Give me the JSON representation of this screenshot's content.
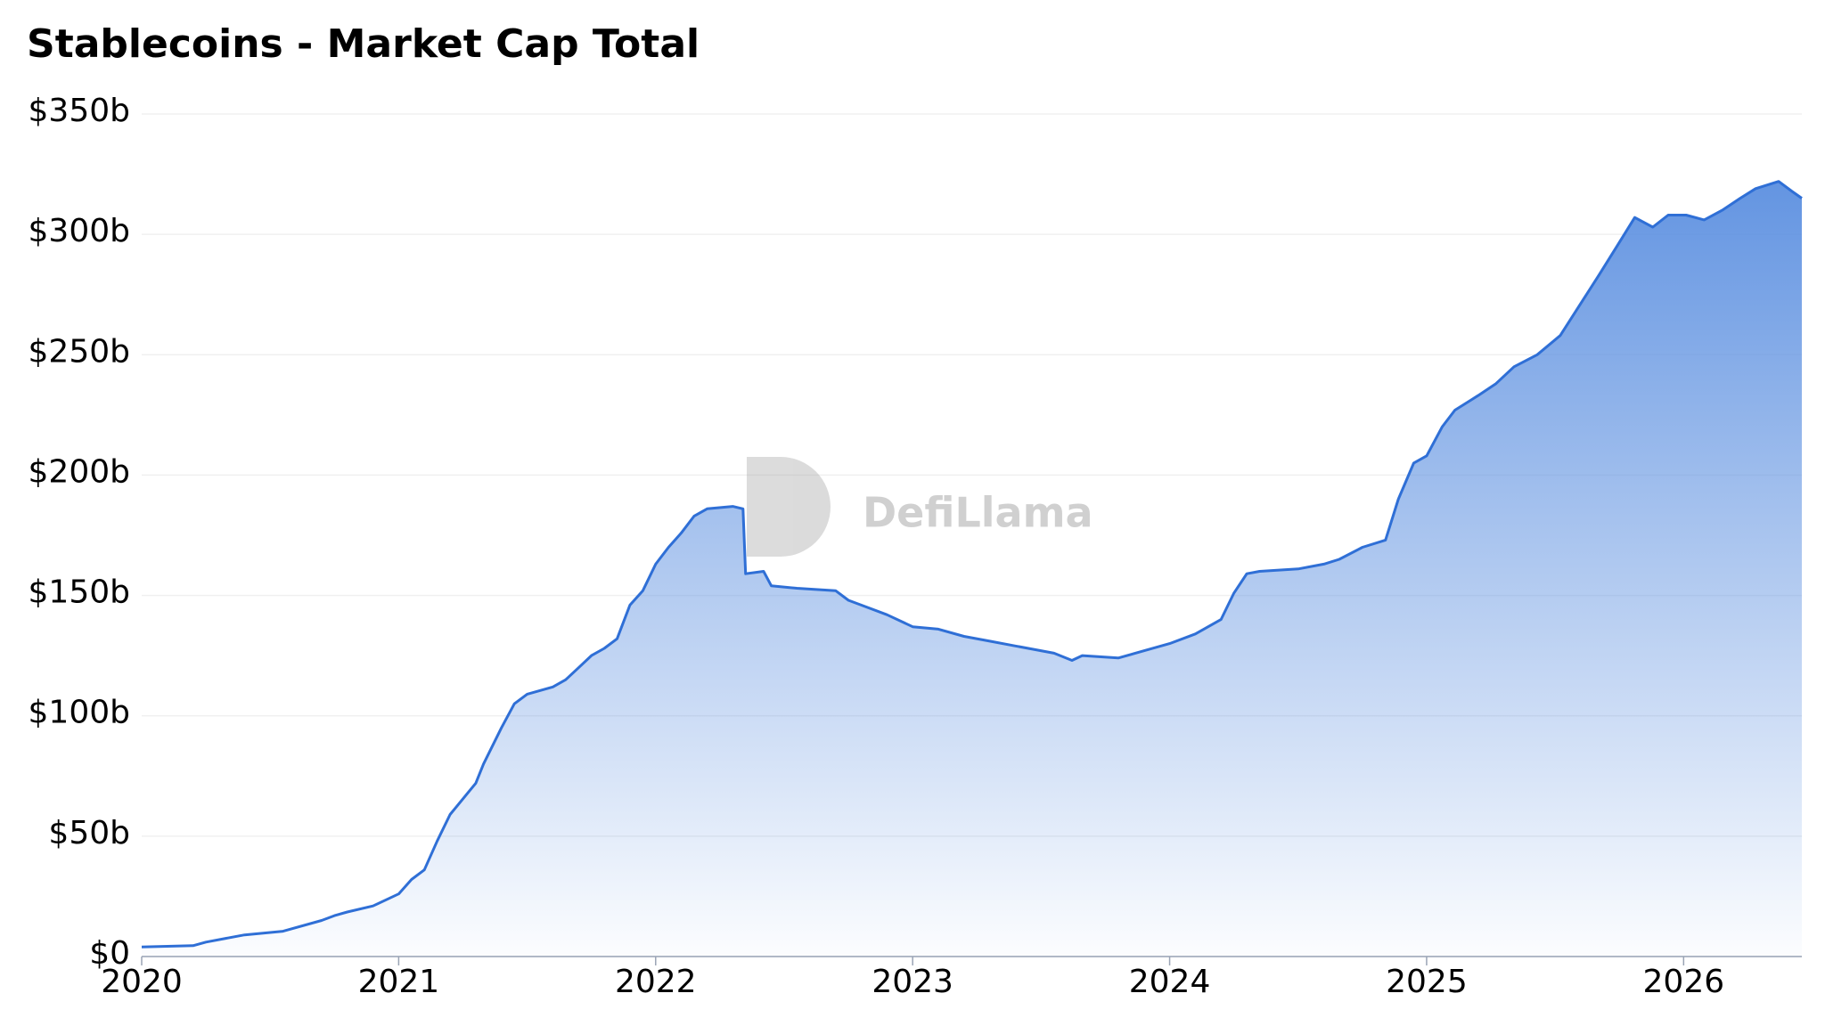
{
  "chart_data": {
    "type": "area",
    "title": "Stablecoins - Market Cap Total",
    "watermark": "DefiLlama",
    "x": [
      2020.0,
      2020.2,
      2020.25,
      2020.4,
      2020.55,
      2020.7,
      2020.75,
      2020.8,
      2020.9,
      2021.0,
      2021.05,
      2021.1,
      2021.15,
      2021.2,
      2021.3,
      2021.33,
      2021.4,
      2021.45,
      2021.5,
      2021.6,
      2021.65,
      2021.7,
      2021.75,
      2021.8,
      2021.85,
      2021.9,
      2021.95,
      2022.0,
      2022.05,
      2022.1,
      2022.15,
      2022.2,
      2022.3,
      2022.34,
      2022.35,
      2022.42,
      2022.45,
      2022.55,
      2022.7,
      2022.75,
      2022.8,
      2022.9,
      2023.0,
      2023.1,
      2023.2,
      2023.3,
      2023.4,
      2023.55,
      2023.62,
      2023.66,
      2023.8,
      2023.9,
      2024.0,
      2024.1,
      2024.2,
      2024.25,
      2024.3,
      2024.35,
      2024.5,
      2024.6,
      2024.66,
      2024.75,
      2024.84,
      2024.89,
      2024.95,
      2025.0,
      2025.06,
      2025.11,
      2025.2,
      2025.27,
      2025.34,
      2025.43,
      2025.52,
      2025.61,
      2025.67,
      2025.74,
      2025.81,
      2025.88,
      2025.94,
      2026.01,
      2026.08,
      2026.15,
      2026.22,
      2026.28,
      2026.37,
      2026.42,
      2026.46
    ],
    "series": [
      {
        "color": "#2f6fd6",
        "values": [
          4,
          4.5,
          6,
          9,
          10.5,
          15,
          17,
          18.5,
          21,
          26,
          32,
          36,
          48,
          59,
          72,
          80,
          95,
          105,
          109,
          112,
          115,
          120,
          125,
          128,
          132,
          146,
          152,
          163,
          170,
          176,
          183,
          186,
          187,
          186,
          159,
          160,
          154,
          153,
          152,
          148,
          146,
          142,
          137,
          136,
          133,
          131,
          129,
          126,
          123,
          125,
          124,
          127,
          130,
          134,
          140,
          151,
          159,
          160,
          161,
          163,
          165,
          170,
          173,
          190,
          205,
          208,
          220,
          227,
          233,
          238,
          245,
          250,
          258,
          273,
          283,
          295,
          307,
          303,
          308,
          308,
          306,
          310,
          315,
          319,
          322,
          318,
          315
        ]
      }
    ],
    "xlim": [
      2020,
      2026.46
    ],
    "xticks": [
      2020,
      2021,
      2022,
      2023,
      2024,
      2025,
      2026
    ],
    "ylim": [
      0,
      350
    ],
    "yticks": [
      {
        "value": 0,
        "label": "$0"
      },
      {
        "value": 50,
        "label": "$50b"
      },
      {
        "value": 100,
        "label": "$100b"
      },
      {
        "value": 150,
        "label": "$150b"
      },
      {
        "value": 200,
        "label": "$200b"
      },
      {
        "value": 250,
        "label": "$250b"
      },
      {
        "value": 300,
        "label": "$300b"
      },
      {
        "value": 350,
        "label": "$350b"
      }
    ],
    "grid": true
  }
}
